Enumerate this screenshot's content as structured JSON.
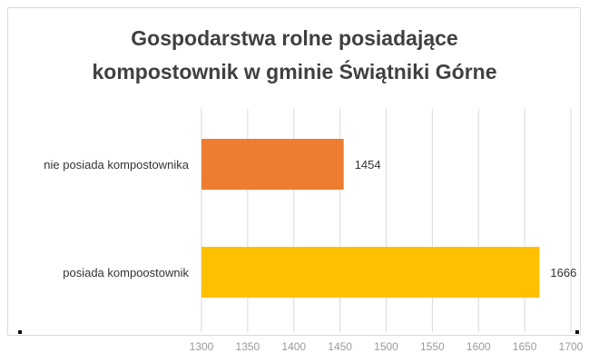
{
  "chart_data": {
    "type": "bar",
    "orientation": "horizontal",
    "title_lines": [
      "Gospodarstwa  rolne  posiadające",
      "kompostownik  w gminie Świątniki Górne"
    ],
    "categories": [
      "nie posiada kompostownika",
      "posiada kompoostownik"
    ],
    "values": [
      1454,
      1666
    ],
    "data_labels": [
      "1454",
      "1666"
    ],
    "colors": [
      "#ED7D31",
      "#FFC000"
    ],
    "xlim": [
      1300,
      1700
    ],
    "xticks": [
      1300,
      1350,
      1400,
      1450,
      1500,
      1550,
      1600,
      1650,
      1700
    ],
    "xtick_labels": [
      "1300",
      "1350",
      "1400",
      "1450",
      "1500",
      "1550",
      "1600",
      "1650",
      "1700"
    ],
    "grid": true,
    "legend": "none",
    "xlabel": "",
    "ylabel": ""
  }
}
